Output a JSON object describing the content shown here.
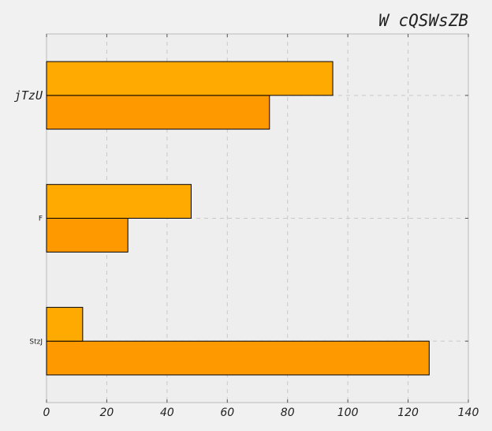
{
  "chart_data": {
    "type": "bar",
    "orientation": "horizontal",
    "title": "W cQSWsZB",
    "xlabel": "",
    "ylabel": "",
    "categories": [
      "StzJ",
      "F",
      "jTzU"
    ],
    "series": [
      {
        "values": [
          127,
          27,
          74
        ],
        "color": "#ff9900"
      },
      {
        "values": [
          12,
          48,
          95
        ],
        "color": "#ffaa00"
      }
    ],
    "xlim": [
      0,
      140
    ],
    "xticks": [
      0,
      20,
      40,
      60,
      80,
      100,
      120,
      140
    ],
    "grid": true,
    "legend": "none"
  }
}
